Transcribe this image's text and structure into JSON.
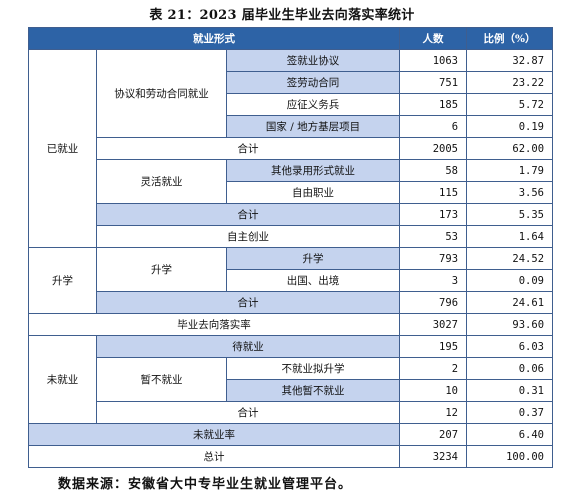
{
  "title": "表 21：2023 届毕业生毕业去向落实率统计",
  "header": {
    "category": "就业形式",
    "count": "人数",
    "percent": "比例（%）"
  },
  "rows": {
    "employed": "已就业",
    "contract_group": "协议和劳动合同就业",
    "sign_agreement": {
      "label": "签就业协议",
      "count": "1063",
      "percent": "32.87"
    },
    "labor_contract": {
      "label": "签劳动合同",
      "count": "751",
      "percent": "23.22"
    },
    "conscription": {
      "label": "应征义务兵",
      "count": "185",
      "percent": "5.72"
    },
    "national_local": {
      "label": "国家 / 地方基层项目",
      "count": "6",
      "percent": "0.19"
    },
    "contract_total": {
      "label": "合计",
      "count": "2005",
      "percent": "62.00"
    },
    "flexible_group": "灵活就业",
    "other_forms": {
      "label": "其他录用形式就业",
      "count": "58",
      "percent": "1.79"
    },
    "freelance": {
      "label": "自由职业",
      "count": "115",
      "percent": "3.56"
    },
    "flexible_total": {
      "label": "合计",
      "count": "173",
      "percent": "5.35"
    },
    "self_employed": {
      "label": "自主创业",
      "count": "53",
      "percent": "1.64"
    },
    "further_study": "升学",
    "study_group": "升学",
    "domestic_study": {
      "label": "升学",
      "count": "793",
      "percent": "24.52"
    },
    "abroad": {
      "label": "出国、出境",
      "count": "3",
      "percent": "0.09"
    },
    "study_total": {
      "label": "合计",
      "count": "796",
      "percent": "24.61"
    },
    "placement_rate": {
      "label": "毕业去向落实率",
      "count": "3027",
      "percent": "93.60"
    },
    "unemployed": "未就业",
    "waiting": {
      "label": "待就业",
      "count": "195",
      "percent": "6.03"
    },
    "temp_group": "暂不就业",
    "planning_study": {
      "label": "不就业拟升学",
      "count": "2",
      "percent": "0.06"
    },
    "other_temp": {
      "label": "其他暂不就业",
      "count": "10",
      "percent": "0.31"
    },
    "temp_total": {
      "label": "合计",
      "count": "12",
      "percent": "0.37"
    },
    "unemployment_rate": {
      "label": "未就业率",
      "count": "207",
      "percent": "6.40"
    },
    "grand_total": {
      "label": "总计",
      "count": "3234",
      "percent": "100.00"
    }
  },
  "source": "数据来源：安徽省大中专毕业生就业管理平台。",
  "colors": {
    "header": "#2d63a6",
    "shade": "#c5d3ee",
    "border": "#3f5e8f"
  }
}
